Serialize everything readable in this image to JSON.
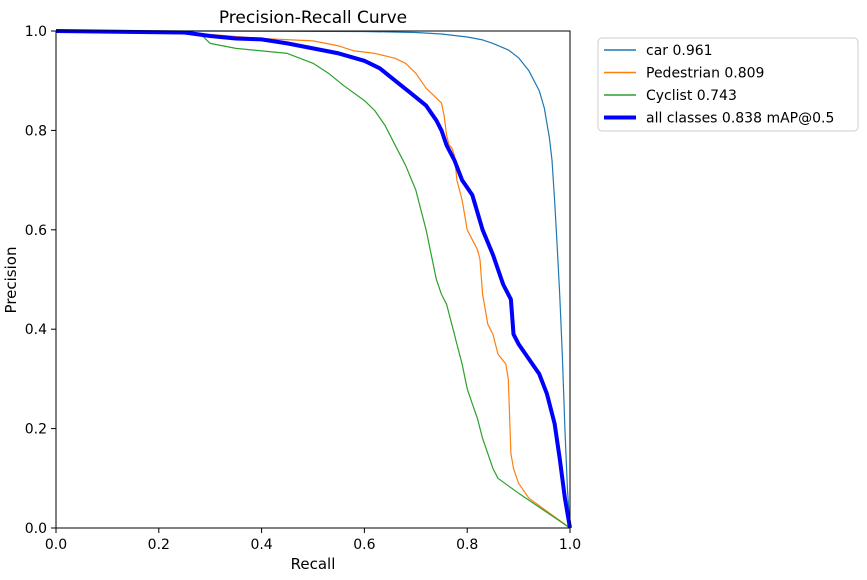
{
  "chart_data": {
    "type": "line",
    "title": "Precision-Recall Curve",
    "xlabel": "Recall",
    "ylabel": "Precision",
    "xlim": [
      0.0,
      1.0
    ],
    "ylim": [
      0.0,
      1.0
    ],
    "x_ticks": [
      "0.0",
      "0.2",
      "0.4",
      "0.6",
      "0.8",
      "1.0"
    ],
    "y_ticks": [
      "0.0",
      "0.2",
      "0.4",
      "0.6",
      "0.8",
      "1.0"
    ],
    "grid": false,
    "legend": "outside-right-top",
    "series": [
      {
        "name": "car 0.961",
        "color": "#1f77b4",
        "points": [
          [
            0,
            1.0
          ],
          [
            0.3,
            1.0
          ],
          [
            0.6,
            0.999
          ],
          [
            0.7,
            0.997
          ],
          [
            0.75,
            0.994
          ],
          [
            0.8,
            0.988
          ],
          [
            0.83,
            0.982
          ],
          [
            0.85,
            0.975
          ],
          [
            0.88,
            0.962
          ],
          [
            0.9,
            0.946
          ],
          [
            0.92,
            0.92
          ],
          [
            0.94,
            0.88
          ],
          [
            0.95,
            0.845
          ],
          [
            0.96,
            0.785
          ],
          [
            0.965,
            0.74
          ],
          [
            0.97,
            0.66
          ],
          [
            0.975,
            0.57
          ],
          [
            0.98,
            0.47
          ],
          [
            0.985,
            0.35
          ],
          [
            0.99,
            0.2
          ],
          [
            0.995,
            0.08
          ],
          [
            1.0,
            0.0
          ]
        ]
      },
      {
        "name": "Pedestrian 0.809",
        "color": "#ff7f0e",
        "points": [
          [
            0,
            1.0
          ],
          [
            0.3,
            0.993
          ],
          [
            0.4,
            0.985
          ],
          [
            0.5,
            0.98
          ],
          [
            0.55,
            0.97
          ],
          [
            0.58,
            0.96
          ],
          [
            0.62,
            0.955
          ],
          [
            0.66,
            0.945
          ],
          [
            0.68,
            0.935
          ],
          [
            0.7,
            0.915
          ],
          [
            0.72,
            0.885
          ],
          [
            0.74,
            0.865
          ],
          [
            0.75,
            0.855
          ],
          [
            0.755,
            0.83
          ],
          [
            0.76,
            0.79
          ],
          [
            0.765,
            0.77
          ],
          [
            0.77,
            0.765
          ],
          [
            0.775,
            0.75
          ],
          [
            0.78,
            0.7
          ],
          [
            0.79,
            0.66
          ],
          [
            0.8,
            0.6
          ],
          [
            0.81,
            0.58
          ],
          [
            0.82,
            0.56
          ],
          [
            0.825,
            0.54
          ],
          [
            0.83,
            0.47
          ],
          [
            0.84,
            0.41
          ],
          [
            0.85,
            0.39
          ],
          [
            0.86,
            0.35
          ],
          [
            0.875,
            0.33
          ],
          [
            0.88,
            0.3
          ],
          [
            0.885,
            0.15
          ],
          [
            0.89,
            0.12
          ],
          [
            0.9,
            0.09
          ],
          [
            0.92,
            0.06
          ],
          [
            1.0,
            0.0
          ]
        ]
      },
      {
        "name": "Cyclist 0.743",
        "color": "#2ca02c",
        "points": [
          [
            0,
            1.0
          ],
          [
            0.28,
            0.995
          ],
          [
            0.3,
            0.975
          ],
          [
            0.35,
            0.965
          ],
          [
            0.45,
            0.955
          ],
          [
            0.5,
            0.935
          ],
          [
            0.53,
            0.915
          ],
          [
            0.56,
            0.89
          ],
          [
            0.6,
            0.86
          ],
          [
            0.62,
            0.84
          ],
          [
            0.64,
            0.81
          ],
          [
            0.66,
            0.77
          ],
          [
            0.68,
            0.73
          ],
          [
            0.7,
            0.68
          ],
          [
            0.71,
            0.64
          ],
          [
            0.72,
            0.6
          ],
          [
            0.73,
            0.55
          ],
          [
            0.74,
            0.5
          ],
          [
            0.75,
            0.47
          ],
          [
            0.76,
            0.45
          ],
          [
            0.77,
            0.41
          ],
          [
            0.78,
            0.37
          ],
          [
            0.79,
            0.33
          ],
          [
            0.8,
            0.28
          ],
          [
            0.81,
            0.25
          ],
          [
            0.82,
            0.22
          ],
          [
            0.83,
            0.18
          ],
          [
            0.84,
            0.15
          ],
          [
            0.85,
            0.12
          ],
          [
            0.86,
            0.1
          ],
          [
            0.88,
            0.085
          ],
          [
            0.9,
            0.07
          ],
          [
            1.0,
            0.0
          ]
        ]
      },
      {
        "name": "all classes 0.838 mAP@0.5",
        "color": "#0000ff",
        "points": [
          [
            0,
            1.0
          ],
          [
            0.25,
            0.997
          ],
          [
            0.3,
            0.99
          ],
          [
            0.35,
            0.985
          ],
          [
            0.4,
            0.983
          ],
          [
            0.45,
            0.975
          ],
          [
            0.5,
            0.965
          ],
          [
            0.55,
            0.955
          ],
          [
            0.6,
            0.94
          ],
          [
            0.63,
            0.925
          ],
          [
            0.66,
            0.9
          ],
          [
            0.69,
            0.875
          ],
          [
            0.72,
            0.85
          ],
          [
            0.74,
            0.82
          ],
          [
            0.75,
            0.8
          ],
          [
            0.76,
            0.77
          ],
          [
            0.775,
            0.74
          ],
          [
            0.79,
            0.7
          ],
          [
            0.81,
            0.67
          ],
          [
            0.83,
            0.6
          ],
          [
            0.85,
            0.55
          ],
          [
            0.87,
            0.49
          ],
          [
            0.885,
            0.46
          ],
          [
            0.89,
            0.39
          ],
          [
            0.9,
            0.37
          ],
          [
            0.92,
            0.34
          ],
          [
            0.94,
            0.31
          ],
          [
            0.955,
            0.27
          ],
          [
            0.97,
            0.21
          ],
          [
            0.98,
            0.14
          ],
          [
            0.99,
            0.06
          ],
          [
            1.0,
            0.0
          ]
        ]
      }
    ]
  }
}
